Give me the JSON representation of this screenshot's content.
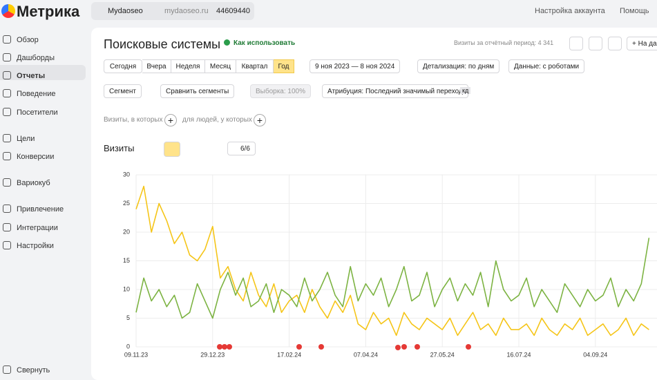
{
  "header": {
    "logo": "Метрика",
    "site": "Mydaoseo",
    "domain": "mydaoseo.ru",
    "counter_id": "44609440",
    "account_settings": "Настройка аккаунта",
    "help": "Помощь"
  },
  "sidebar": {
    "items": [
      "Обзор",
      "Дашборды",
      "Отчеты",
      "Поведение",
      "Посетители",
      "Цели",
      "Конверсии",
      "Вариокуб",
      "Привлечение",
      "Интеграции",
      "Настройки",
      "Свернуть"
    ]
  },
  "report": {
    "title": "Поисковые системы",
    "how_to_use": "Как использовать",
    "visits_total": "Визиты за отчётный период: 4 341",
    "add_button": "+ На да",
    "periods": [
      "Сегодня",
      "Вчера",
      "Неделя",
      "Месяц",
      "Квартал",
      "Год"
    ],
    "date_range": "9 ноя 2023 — 8 ноя 2024",
    "detail": "Детализация: по дням",
    "data_mode": "Данные: с роботами",
    "segment": "Сегмент",
    "compare": "Сравнить сегменты",
    "sample": "Выборка: 100%",
    "attribution": "Атрибуция: Последний значимый переход",
    "attribution_badge": "кд",
    "filter_visits": "Визиты, в которых",
    "filter_people": "для людей, у которых",
    "metric": "Визиты",
    "series_count": "6/6"
  },
  "chart": {
    "type": "line",
    "categories": [
      "09.11.23",
      null,
      null,
      null,
      null,
      null,
      null,
      null,
      null,
      null,
      "29.12.23",
      null,
      null,
      null,
      null,
      null,
      null,
      null,
      null,
      null,
      "17.02.24",
      null,
      null,
      null,
      null,
      null,
      null,
      null,
      null,
      null,
      "07.04.24",
      null,
      null,
      null,
      null,
      null,
      null,
      null,
      null,
      null,
      "27.05.24",
      null,
      null,
      null,
      null,
      null,
      null,
      null,
      null,
      null,
      "16.07.24",
      null,
      null,
      null,
      null,
      null,
      null,
      null,
      null,
      null,
      "04.09.24",
      null,
      null,
      null,
      null,
      null,
      null,
      null
    ],
    "series": [
      {
        "color": "#f5c518",
        "values": [
          24,
          28,
          20,
          25,
          22,
          18,
          20,
          16,
          15,
          17,
          21,
          12,
          14,
          10,
          8,
          13,
          9,
          7,
          11,
          6,
          8,
          9,
          6,
          10,
          7,
          5,
          8,
          6,
          9,
          4,
          3,
          6,
          4,
          5,
          2,
          6,
          4,
          3,
          5,
          4,
          3,
          5,
          2,
          4,
          6,
          3,
          4,
          2,
          5,
          3,
          3,
          4,
          2,
          5,
          3,
          2,
          4,
          3,
          5,
          2,
          3,
          4,
          2,
          3,
          5,
          2,
          4,
          3
        ]
      },
      {
        "color": "#7cb342",
        "values": [
          6,
          12,
          8,
          10,
          7,
          9,
          5,
          6,
          11,
          8,
          5,
          10,
          13,
          9,
          12,
          7,
          8,
          11,
          6,
          10,
          9,
          7,
          12,
          8,
          10,
          13,
          9,
          7,
          14,
          8,
          11,
          9,
          12,
          7,
          10,
          14,
          8,
          9,
          13,
          7,
          10,
          12,
          8,
          11,
          9,
          13,
          7,
          15,
          10,
          8,
          9,
          12,
          7,
          10,
          8,
          6,
          11,
          9,
          7,
          10,
          8,
          9,
          12,
          7,
          10,
          8,
          11,
          19
        ]
      }
    ],
    "ylim": [
      0,
      30
    ],
    "yticks": [
      0,
      5,
      10,
      15,
      20,
      25,
      30
    ],
    "grid": true
  }
}
